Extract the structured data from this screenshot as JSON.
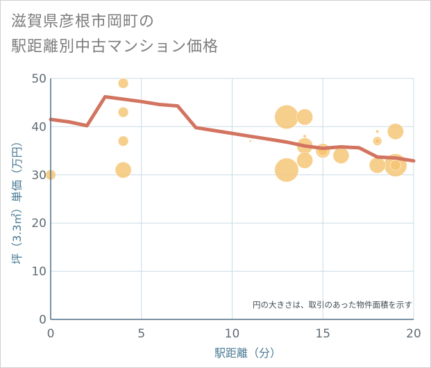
{
  "title_line1": "滋賀県彦根市岡町の",
  "title_line2": "駅距離別中古マンション価格",
  "chart_data": {
    "type": "scatter",
    "xlabel": "駅距離（分）",
    "ylabel": "坪（3.3㎡）単価（万円）",
    "xlim": [
      0,
      20
    ],
    "ylim": [
      0,
      50
    ],
    "xticks": [
      0,
      5,
      10,
      15,
      20
    ],
    "yticks": [
      0,
      10,
      20,
      30,
      40,
      50
    ],
    "grid": true,
    "note": "円の大きさは、取引のあった物件面積を示す",
    "colors": {
      "bubble": "#f5c36f",
      "line": "#d2745f",
      "grid": "#c9dce6",
      "axis": "#4a6f85"
    },
    "points": [
      {
        "x": 0,
        "y": 30,
        "size": 2
      },
      {
        "x": 4,
        "y": 49,
        "size": 2
      },
      {
        "x": 4,
        "y": 43,
        "size": 2
      },
      {
        "x": 4,
        "y": 37,
        "size": 2
      },
      {
        "x": 4,
        "y": 31,
        "size": 5
      },
      {
        "x": 11,
        "y": 37,
        "size": 0.1
      },
      {
        "x": 13,
        "y": 42,
        "size": 11
      },
      {
        "x": 13,
        "y": 31,
        "size": 11
      },
      {
        "x": 14,
        "y": 42,
        "size": 5
      },
      {
        "x": 14,
        "y": 38,
        "size": 0.2
      },
      {
        "x": 14,
        "y": 36,
        "size": 5
      },
      {
        "x": 14,
        "y": 33,
        "size": 5
      },
      {
        "x": 15,
        "y": 35,
        "size": 4
      },
      {
        "x": 15,
        "y": 35,
        "size": 2
      },
      {
        "x": 16,
        "y": 34,
        "size": 5
      },
      {
        "x": 18,
        "y": 39,
        "size": 0.2
      },
      {
        "x": 18,
        "y": 37,
        "size": 1.5
      },
      {
        "x": 18,
        "y": 37,
        "size": 0.5
      },
      {
        "x": 18,
        "y": 32,
        "size": 5
      },
      {
        "x": 19,
        "y": 39,
        "size": 5
      },
      {
        "x": 19,
        "y": 32,
        "size": 10
      },
      {
        "x": 19,
        "y": 32,
        "size": 2
      }
    ],
    "trend": {
      "x": [
        0,
        1,
        2,
        3,
        4,
        5,
        6,
        7,
        8,
        9,
        10,
        11,
        12,
        13,
        14,
        15,
        16,
        17,
        18,
        19,
        20
      ],
      "y": [
        41.5,
        41,
        40.2,
        46.2,
        45.7,
        45.2,
        44.6,
        44.3,
        39.8,
        39.2,
        38.6,
        38,
        37.4,
        36.8,
        36,
        35.5,
        35.8,
        35.6,
        33.7,
        33.5,
        32.9
      ]
    }
  }
}
